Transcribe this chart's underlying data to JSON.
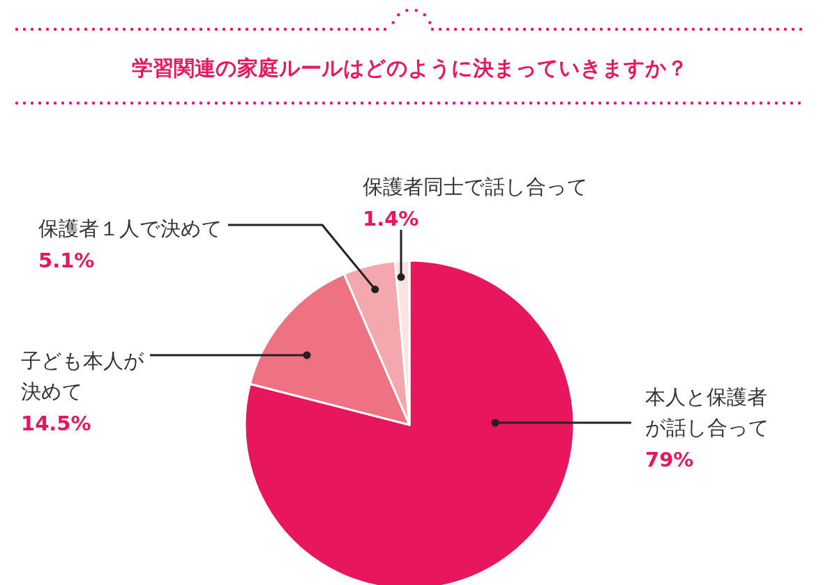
{
  "chart_data": {
    "type": "pie",
    "title": "学習関連の家庭ルールはどのように決まっていきますか？",
    "categories": [
      "本人と保護者が話し合って",
      "子ども本人が決めて",
      "保護者１人で決めて",
      "保護者同士で話し合って"
    ],
    "values": [
      79,
      14.5,
      5.1,
      1.4
    ],
    "colors": [
      "#e8175d",
      "#ef7283",
      "#f4a7ad",
      "#fbe3e4"
    ],
    "value_labels": [
      "79%",
      "14.5%",
      "5.1%",
      "1.4%"
    ]
  }
}
